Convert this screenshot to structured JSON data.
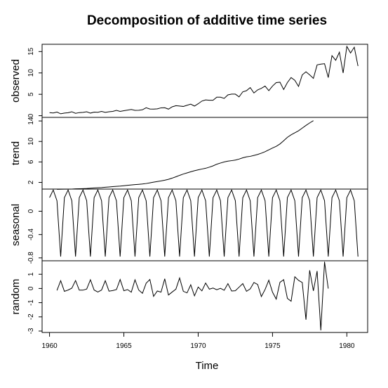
{
  "chart_data": {
    "type": "line",
    "title": "Decomposition of additive time series",
    "xlabel": "Time",
    "xlim": [
      1959.5,
      1981.4
    ],
    "xticks": [
      1960,
      1965,
      1970,
      1975,
      1980
    ],
    "panels": [
      {
        "name": "observed",
        "ylim": [
          -0.4,
          16.7
        ],
        "yticks": [
          0,
          5,
          10,
          15
        ],
        "start": 1960.0,
        "step": 0.25,
        "values": [
          0.71,
          0.63,
          0.85,
          0.44,
          0.61,
          0.69,
          0.92,
          0.55,
          0.72,
          0.77,
          0.92,
          0.6,
          0.83,
          0.8,
          1.0,
          0.77,
          0.92,
          1.0,
          1.24,
          1.0,
          1.16,
          1.3,
          1.45,
          1.25,
          1.26,
          1.38,
          1.86,
          1.56,
          1.53,
          1.59,
          1.83,
          1.86,
          1.53,
          2.07,
          2.34,
          2.25,
          2.16,
          2.43,
          2.7,
          2.25,
          2.79,
          3.42,
          3.69,
          3.6,
          3.6,
          4.32,
          4.32,
          4.05,
          4.86,
          5.04,
          5.04,
          4.41,
          5.58,
          5.85,
          6.57,
          5.31,
          6.03,
          6.39,
          6.93,
          5.85,
          6.93,
          7.74,
          7.83,
          6.12,
          7.74,
          8.91,
          8.28,
          6.84,
          9.54,
          10.26,
          9.54,
          8.73,
          11.88,
          12.06,
          12.15,
          8.91,
          14.04,
          12.96,
          14.85,
          9.99,
          16.2,
          14.67,
          16.02,
          11.61
        ]
      },
      {
        "name": "trend",
        "ylim": [
          0.7,
          14.7
        ],
        "yticks": [
          2,
          6,
          10,
          14
        ],
        "start": 1960.5,
        "step": 0.25,
        "values": [
          0.65,
          0.67,
          0.68,
          0.69,
          0.7,
          0.75,
          0.77,
          0.79,
          0.82,
          0.87,
          0.92,
          0.95,
          0.99,
          1.06,
          1.12,
          1.18,
          1.23,
          1.28,
          1.35,
          1.43,
          1.5,
          1.57,
          1.63,
          1.69,
          1.79,
          1.92,
          2.05,
          2.17,
          2.29,
          2.43,
          2.6,
          2.84,
          3.1,
          3.38,
          3.64,
          3.86,
          4.08,
          4.29,
          4.46,
          4.62,
          4.76,
          4.98,
          5.23,
          5.56,
          5.79,
          6.0,
          6.15,
          6.25,
          6.36,
          6.56,
          6.81,
          7.0,
          7.09,
          7.27,
          7.46,
          7.71,
          8.0,
          8.36,
          8.72,
          9.05,
          9.51,
          10.13,
          10.81,
          11.29,
          11.69,
          12.09,
          12.61,
          13.13,
          13.62,
          14.06
        ]
      },
      {
        "name": "seasonal",
        "ylim": [
          -0.85,
          0.38
        ],
        "yticks": [
          -0.8,
          -0.4,
          0.0
        ],
        "start": 1960.0,
        "step": 0.25,
        "pattern": [
          0.234,
          0.364,
          0.18,
          -0.778
        ],
        "count": 84
      },
      {
        "name": "random",
        "ylim": [
          -3.1,
          1.95
        ],
        "yticks": [
          -3,
          -2,
          -1,
          0,
          1
        ],
        "start": 1960.5,
        "step": 0.25,
        "values": [
          -0.14,
          0.55,
          -0.2,
          -0.11,
          0.02,
          0.56,
          -0.12,
          -0.12,
          -0.04,
          0.61,
          -0.11,
          -0.25,
          -0.11,
          0.55,
          -0.19,
          -0.15,
          -0.08,
          0.63,
          -0.16,
          -0.08,
          -0.26,
          0.61,
          -0.11,
          -0.34,
          0.37,
          0.63,
          -0.56,
          -0.18,
          -0.26,
          0.68,
          -0.46,
          -0.25,
          -0.05,
          0.74,
          -0.2,
          -0.31,
          0.26,
          -0.52,
          0.1,
          -0.17,
          0.38,
          -0.05,
          0.03,
          -0.09,
          0.01,
          -0.13,
          0.34,
          -0.18,
          -0.16,
          0.09,
          0.34,
          -0.2,
          -0.03,
          0.42,
          0.28,
          -0.57,
          -0.07,
          0.58,
          -0.26,
          -0.75,
          0.43,
          0.62,
          -0.7,
          -0.9,
          0.82,
          0.57,
          0.42,
          -2.2,
          1.28,
          -0.17,
          1.23,
          -2.95,
          1.88,
          -0.01
        ]
      }
    ]
  }
}
